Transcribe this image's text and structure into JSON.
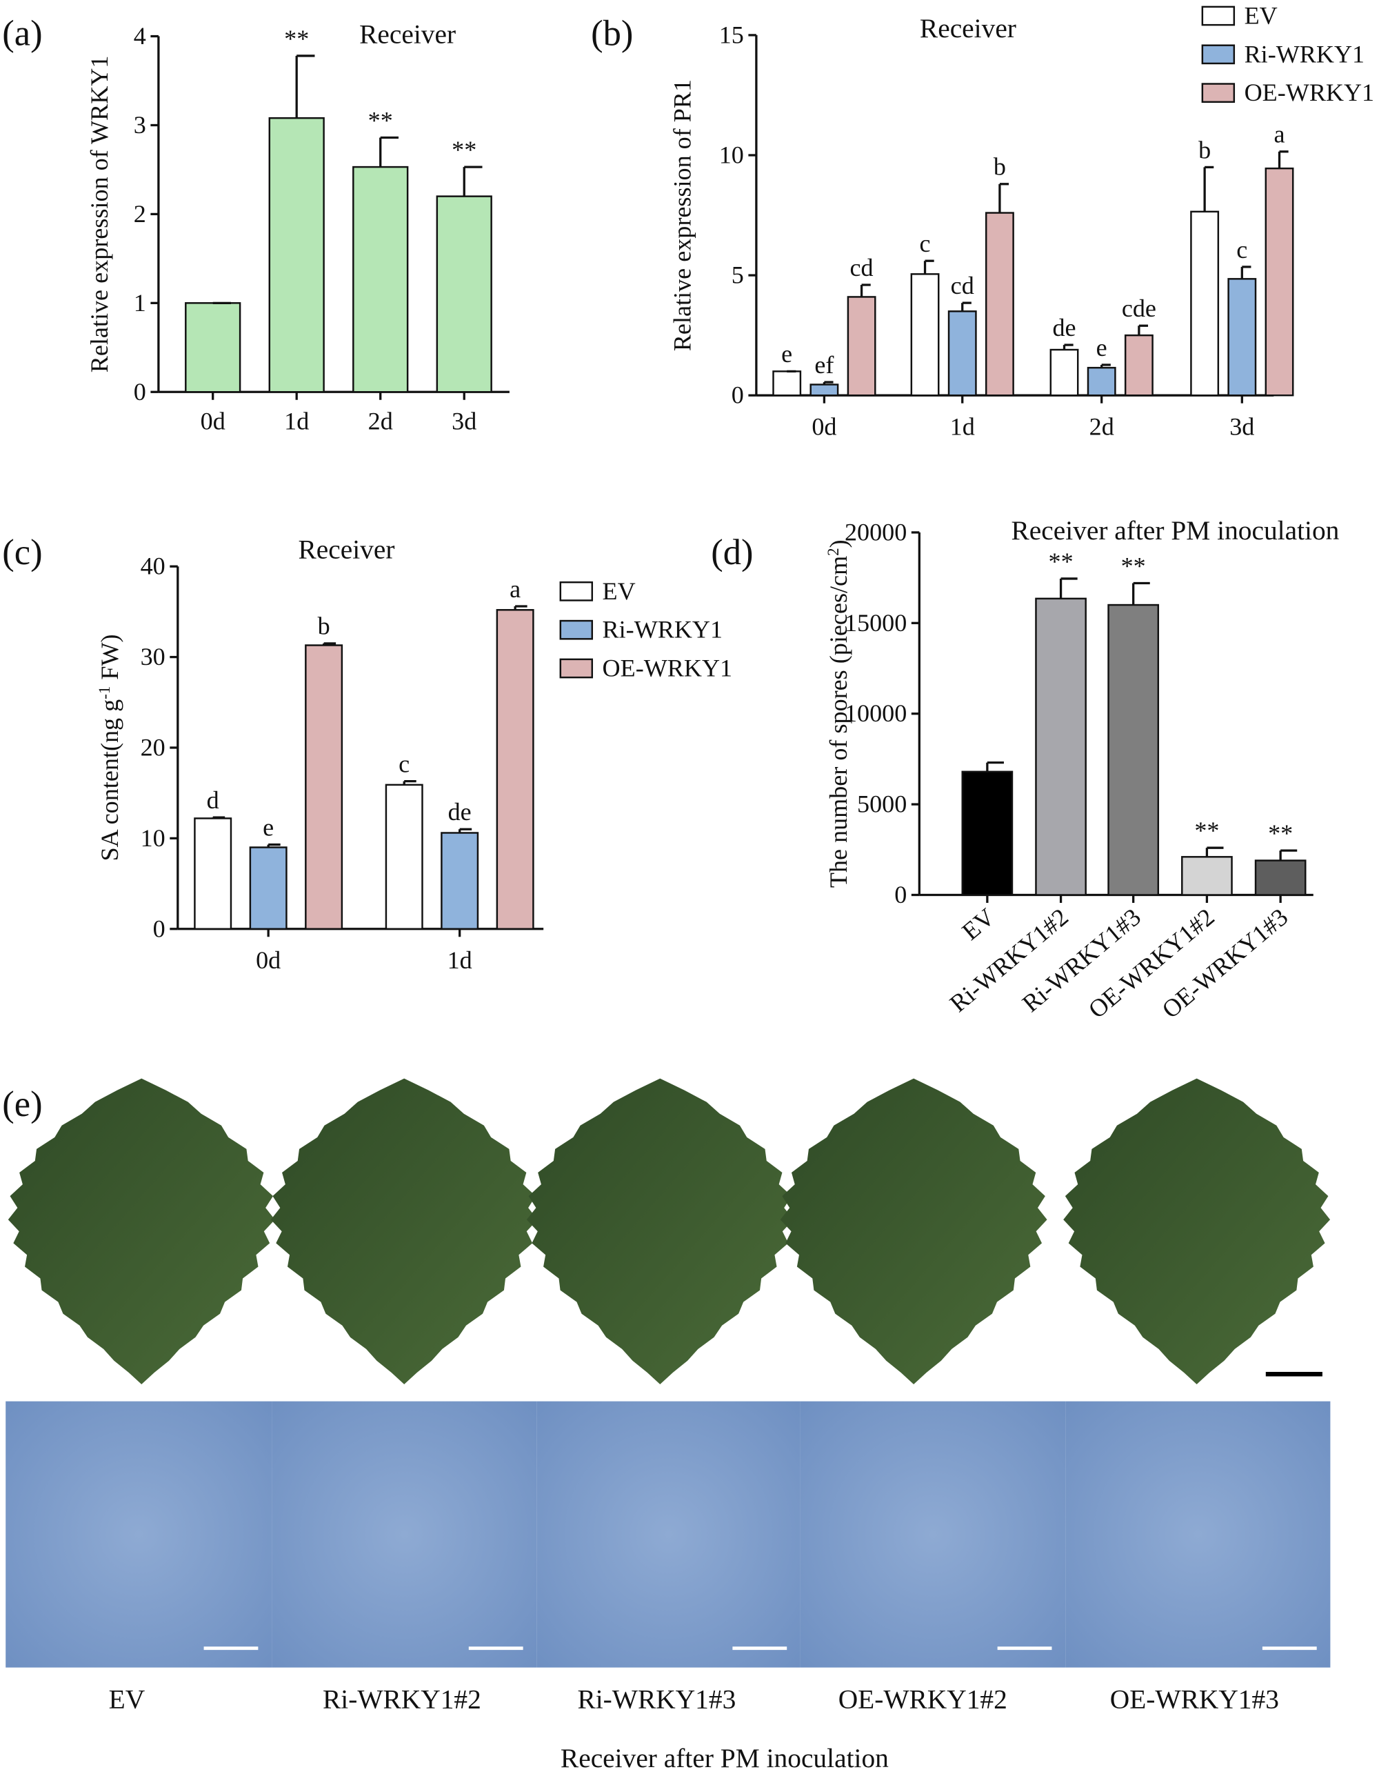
{
  "chart_data": [
    {
      "type": "bar",
      "panel_label": "(a)",
      "title": "Receiver",
      "y_label": "Relative expression of WRKY1",
      "categories": [
        "0d",
        "1d",
        "2d",
        "3d"
      ],
      "values": [
        1,
        3.08,
        2.53,
        2.2
      ],
      "errors": [
        0,
        0.7,
        0.33,
        0.33
      ],
      "annotations": [
        null,
        "**",
        "**",
        "**"
      ],
      "color": "#b5e6b5",
      "ylim": [
        0,
        4
      ],
      "yticks": [
        0,
        1,
        2,
        3,
        4
      ]
    },
    {
      "type": "grouped_bar",
      "panel_label": "(b)",
      "title": "Receiver",
      "y_label": "Relative expression of PR1",
      "categories": [
        "0d",
        "1d",
        "2d",
        "3d"
      ],
      "ylim": [
        0,
        15
      ],
      "yticks": [
        0,
        5,
        10,
        15
      ],
      "series": [
        {
          "name": "EV",
          "color": "#ffffff",
          "values": [
            1.0,
            5.05,
            1.9,
            7.65
          ],
          "errors": [
            0,
            0.55,
            0.2,
            1.85
          ],
          "annotations": [
            "e",
            "c",
            "de",
            "b"
          ]
        },
        {
          "name": "Ri-WRKY1",
          "color": "#8fb3dc",
          "values": [
            0.45,
            3.5,
            1.15,
            4.85
          ],
          "errors": [
            0.1,
            0.35,
            0.12,
            0.5
          ],
          "annotations": [
            "ef",
            "cd",
            "e",
            "c"
          ]
        },
        {
          "name": "OE-WRKY1",
          "color": "#dcb4b4",
          "values": [
            4.1,
            7.6,
            2.5,
            9.45
          ],
          "errors": [
            0.5,
            1.2,
            0.4,
            0.7
          ],
          "annotations": [
            "cd",
            "b",
            "cde",
            "a"
          ]
        }
      ]
    },
    {
      "type": "grouped_bar",
      "panel_label": "(c)",
      "title": "Receiver",
      "y_label": [
        {
          "text": "SA content(ng g"
        },
        {
          "text": "-1",
          "sup": true
        },
        {
          "text": " FW)"
        }
      ],
      "categories": [
        "0d",
        "1d"
      ],
      "ylim": [
        0,
        40
      ],
      "yticks": [
        0,
        10,
        20,
        30,
        40
      ],
      "series": [
        {
          "name": "EV",
          "color": "#ffffff",
          "values": [
            12.2,
            15.9
          ],
          "errors": [
            0.1,
            0.4
          ],
          "annotations": [
            "d",
            "c"
          ]
        },
        {
          "name": "Ri-WRKY1",
          "color": "#8fb3dc",
          "values": [
            9.0,
            10.6
          ],
          "errors": [
            0.3,
            0.4
          ],
          "annotations": [
            "e",
            "de"
          ]
        },
        {
          "name": "OE-WRKY1",
          "color": "#dcb4b4",
          "values": [
            31.3,
            35.2
          ],
          "errors": [
            0.2,
            0.4
          ],
          "annotations": [
            "b",
            "a"
          ]
        }
      ]
    },
    {
      "type": "bar",
      "panel_label": "(d)",
      "title": "Receiver after PM inoculation",
      "y_label": [
        {
          "text": "The number of spores (pieces/cm"
        },
        {
          "text": "2",
          "sup": true
        },
        {
          "text": ")"
        }
      ],
      "categories": [
        "EV",
        "Ri-WRKY1#2",
        "Ri-WRKY1#3",
        "OE-WRKY1#2",
        "OE-WRKY1#3"
      ],
      "values": [
        6800,
        16350,
        16000,
        2100,
        1900
      ],
      "errors": [
        500,
        1100,
        1200,
        500,
        550
      ],
      "annotations": [
        null,
        "**",
        "**",
        "**",
        "**"
      ],
      "colors": [
        "#000000",
        "#a7a7ac",
        "#7f7f7f",
        "#d4d4d4",
        "#5e5e5e"
      ],
      "ylim": [
        0,
        20000
      ],
      "yticks": [
        0,
        5000,
        10000,
        15000,
        20000
      ]
    }
  ],
  "panel_e": {
    "panel_label": "(e)",
    "captions": [
      "EV",
      "Ri-WRKY1#2",
      "Ri-WRKY1#3",
      "OE-WRKY1#2",
      "OE-WRKY1#3"
    ],
    "title": "Receiver after PM inoculation"
  }
}
